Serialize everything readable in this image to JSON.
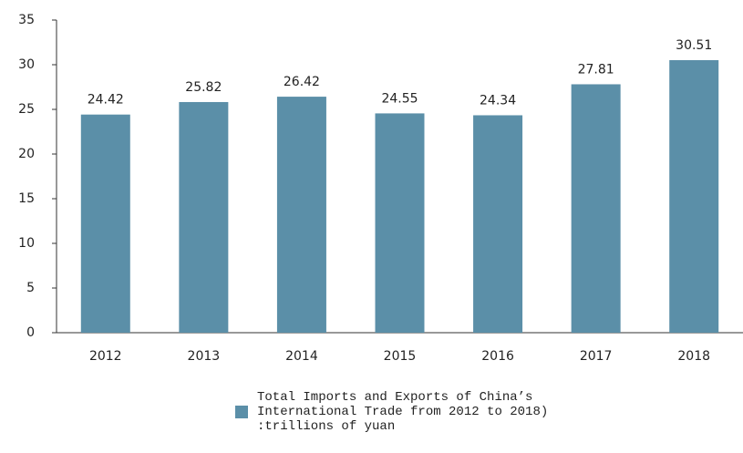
{
  "chart_data": {
    "type": "bar",
    "categories": [
      "2012",
      "2013",
      "2014",
      "2015",
      "2016",
      "2017",
      "2018"
    ],
    "series": [
      {
        "name": "Total Imports and Exports of China’s International Trade from 2012 to 2018) :trillions of yuan",
        "color": "#5b8fa8",
        "values": [
          24.42,
          25.82,
          26.42,
          24.55,
          24.34,
          27.81,
          30.51
        ]
      }
    ],
    "ylim": [
      0,
      35
    ],
    "yticks": [
      0,
      5,
      10,
      15,
      20,
      25,
      30,
      35
    ],
    "grid": false
  }
}
